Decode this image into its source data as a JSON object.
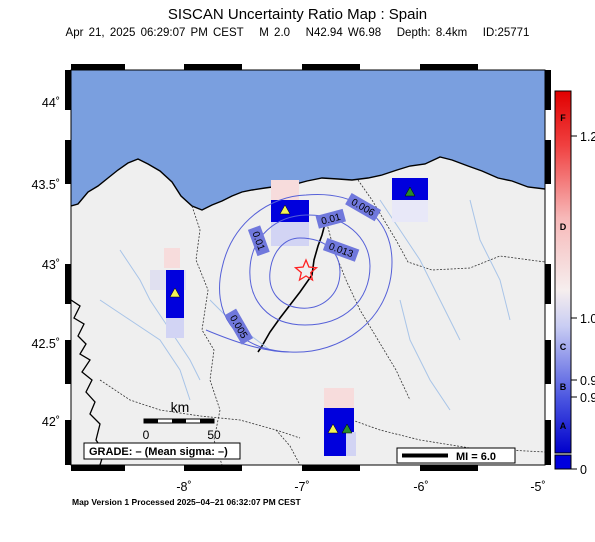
{
  "title": "SISCAN Uncertainty Ratio Map : Spain",
  "event": {
    "datetime": "Apr 21, 2025 06:29:07 PM CEST",
    "magnitude": "M 2.0",
    "location": "N42.94 W6.98",
    "depth": "Depth: 8.4km",
    "id": "ID:25771"
  },
  "axes": {
    "lat_ticks": [
      "44˚",
      "43.5˚",
      "43˚",
      "42.5˚",
      "42˚"
    ],
    "lon_ticks": [
      "-8˚",
      "-7˚",
      "-6˚",
      "-5˚"
    ]
  },
  "contour_labels": [
    "0.01",
    "0.006",
    "0.013",
    "0.01",
    "0.005"
  ],
  "scale_bar": {
    "unit": "km",
    "start": "0",
    "end": "50"
  },
  "grade_text": "GRADE: – (Mean sigma: –)",
  "mi_legend": "MI = 6.0",
  "colorbar": {
    "letters": [
      "F",
      "D",
      "C",
      "B",
      "A"
    ],
    "values": [
      "1.2",
      "1.0",
      "0.9",
      "0.9",
      "0"
    ]
  },
  "footer": "Map Version 1 Processed 2025–04–21 06:32:07 PM CEST",
  "colors": {
    "sea": "#7a9fdf",
    "land": "#efefef",
    "epicenter": "#ff2222",
    "station_cell": "#0000dd"
  }
}
